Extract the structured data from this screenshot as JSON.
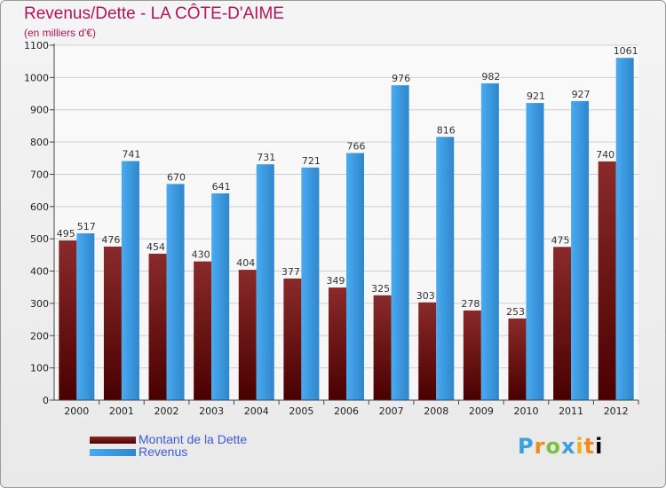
{
  "header": {
    "title": "Revenus/Dette - LA CÔTE-D'AIME",
    "subtitle": "(en milliers d'€)"
  },
  "legend": {
    "items": [
      {
        "label": "Montant de la Dette",
        "color": "#6b0a0a"
      },
      {
        "label": "Revenus",
        "color": "#3a9be0"
      }
    ]
  },
  "logo": {
    "text": "Proxiti"
  },
  "chart_data": {
    "type": "bar",
    "title": "Revenus/Dette - LA CÔTE-D'AIME",
    "subtitle": "(en milliers d'€)",
    "categories": [
      "2000",
      "2001",
      "2002",
      "2003",
      "2004",
      "2005",
      "2006",
      "2007",
      "2008",
      "2009",
      "2010",
      "2011",
      "2012"
    ],
    "series": [
      {
        "name": "Montant de la Dette",
        "color": "#7a1616",
        "values": [
          495,
          476,
          454,
          430,
          404,
          377,
          349,
          325,
          303,
          278,
          253,
          475,
          740
        ]
      },
      {
        "name": "Revenus",
        "color": "#3a9be0",
        "values": [
          517,
          741,
          670,
          641,
          731,
          721,
          766,
          976,
          816,
          982,
          921,
          927,
          1061
        ]
      }
    ],
    "ylim": [
      0,
      1100
    ],
    "yticks": [
      0,
      100,
      200,
      300,
      400,
      500,
      600,
      700,
      800,
      900,
      1000,
      1100
    ],
    "grid": true,
    "legend_position": "bottom-left"
  }
}
